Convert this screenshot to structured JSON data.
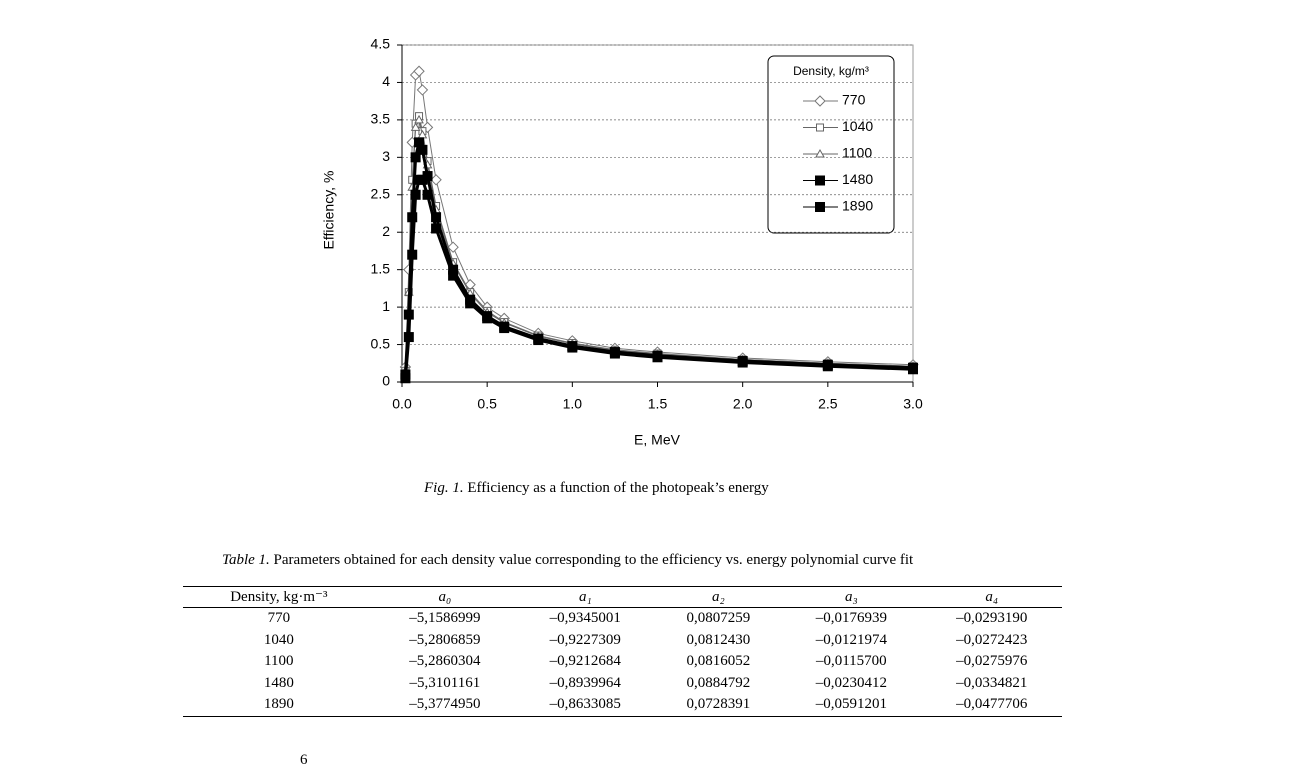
{
  "chart_data": {
    "type": "line",
    "ylabel": "Efficiency, %",
    "xlabel": "E, MeV",
    "legend_title": "Density, kg/m³",
    "x": [
      0.02,
      0.04,
      0.06,
      0.08,
      0.1,
      0.12,
      0.15,
      0.2,
      0.3,
      0.4,
      0.5,
      0.6,
      0.8,
      1.0,
      1.25,
      1.5,
      2.0,
      2.5,
      3.0
    ],
    "series": [
      {
        "name": "770",
        "color": "#777777",
        "marker": "diamond",
        "values": [
          0.2,
          1.5,
          3.2,
          4.1,
          4.15,
          3.9,
          3.4,
          2.7,
          1.8,
          1.3,
          1.0,
          0.85,
          0.65,
          0.55,
          0.45,
          0.4,
          0.32,
          0.27,
          0.23
        ]
      },
      {
        "name": "1040",
        "color": "#666666",
        "marker": "square-open",
        "values": [
          0.15,
          1.2,
          2.7,
          3.45,
          3.55,
          3.35,
          2.95,
          2.35,
          1.6,
          1.2,
          0.95,
          0.8,
          0.62,
          0.52,
          0.43,
          0.38,
          0.3,
          0.25,
          0.21
        ]
      },
      {
        "name": "1100",
        "color": "#666666",
        "marker": "triangle",
        "values": [
          0.15,
          1.2,
          2.6,
          3.4,
          3.5,
          3.3,
          2.9,
          2.3,
          1.58,
          1.18,
          0.93,
          0.79,
          0.61,
          0.51,
          0.42,
          0.37,
          0.3,
          0.25,
          0.21
        ]
      },
      {
        "name": "1480",
        "color": "#000000",
        "marker": "square",
        "values": [
          0.1,
          0.9,
          2.2,
          3.0,
          3.2,
          3.1,
          2.75,
          2.2,
          1.5,
          1.1,
          0.88,
          0.74,
          0.58,
          0.48,
          0.4,
          0.35,
          0.28,
          0.23,
          0.19
        ]
      },
      {
        "name": "1890",
        "color": "#000000",
        "marker": "square",
        "values": [
          0.05,
          0.6,
          1.7,
          2.5,
          2.7,
          2.7,
          2.5,
          2.05,
          1.42,
          1.05,
          0.85,
          0.72,
          0.56,
          0.46,
          0.38,
          0.33,
          0.26,
          0.21,
          0.17
        ]
      }
    ],
    "xlim": [
      0,
      3
    ],
    "ylim": [
      0,
      4.5
    ],
    "xticks": [
      {
        "value": 0,
        "label": "0.0"
      },
      0.5,
      {
        "value": 1,
        "label": "1.0"
      },
      1.5,
      {
        "value": 2,
        "label": "2.0"
      },
      2.5,
      {
        "value": 3,
        "label": "3.0"
      }
    ],
    "yticks": [
      0,
      0.5,
      1,
      1.5,
      2,
      2.5,
      3,
      3.5,
      4,
      4.5
    ],
    "grid": true,
    "legend": "upper right"
  },
  "figure_caption": {
    "label": "Fig. 1.",
    "text": "Efficiency as a function of the photopeak’s energy"
  },
  "table": {
    "caption": {
      "label": "Table 1.",
      "text": "Parameters obtained for each density value corresponding to the efficiency vs. energy polynomial curve fit"
    },
    "header": [
      "Density, kg·m⁻³",
      "a₀",
      "a₁",
      "a₂",
      "a₃",
      "a₄"
    ],
    "rows": [
      [
        "770",
        "–5,1586999",
        "–0,9345001",
        "0,0807259",
        "–0,0176939",
        "–0,0293190"
      ],
      [
        "1040",
        "–5,2806859",
        "–0,9227309",
        "0,0812430",
        "–0,0121974",
        "–0,0272423"
      ],
      [
        "1100",
        "–5,2860304",
        "–0,9212684",
        "0,0816052",
        "–0,0115700",
        "–0,0275976"
      ],
      [
        "1480",
        "–5,3101161",
        "–0,8939964",
        "0,0884792",
        "–0,0230412",
        "–0,0334821"
      ],
      [
        "1890",
        "–5,3774950",
        "–0,8633085",
        "0,0728391",
        "–0,0591201",
        "–0,0477706"
      ]
    ]
  },
  "page_number": "6"
}
